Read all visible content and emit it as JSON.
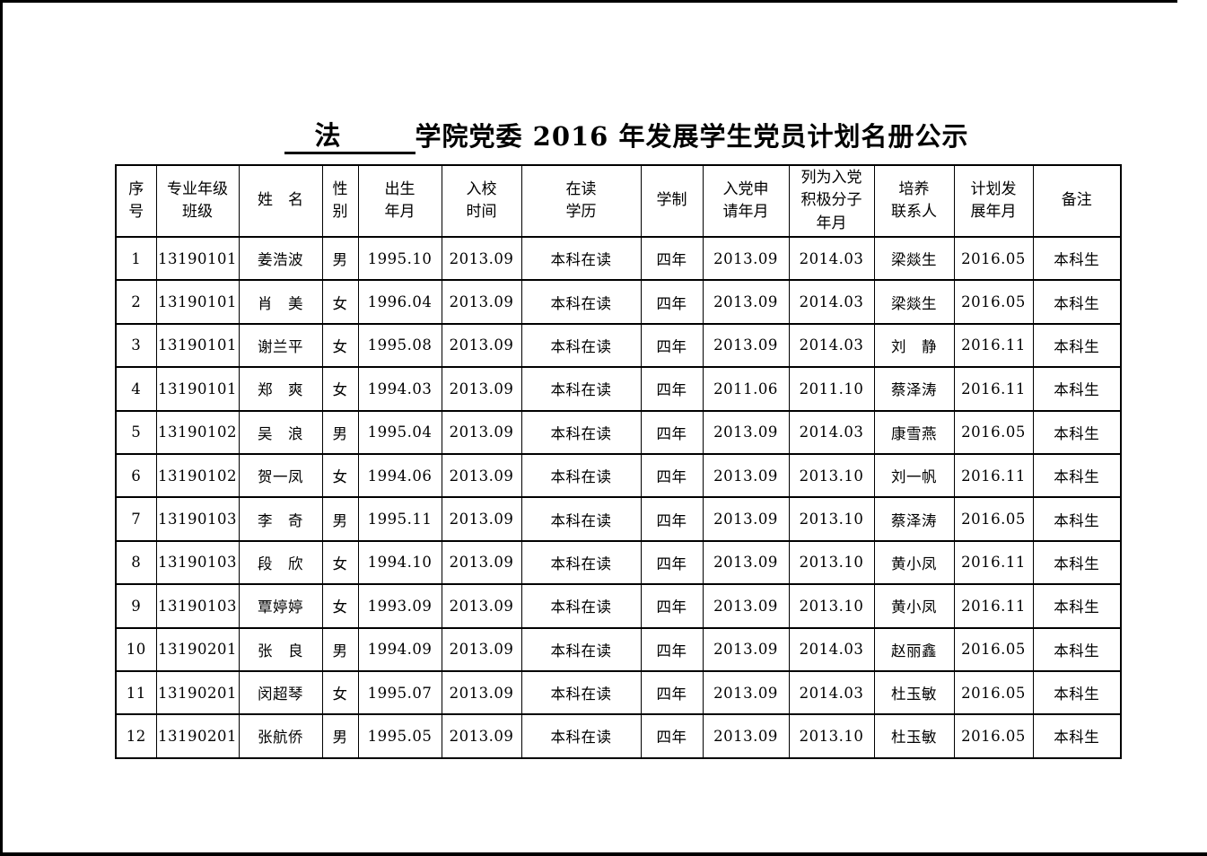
{
  "title": {
    "blank": "法",
    "rest": "学院党委 2016 年发展学生党员计划名册公示"
  },
  "table": {
    "headers": [
      [
        "序",
        "号"
      ],
      [
        "专业年级",
        "班级"
      ],
      [
        "姓　名"
      ],
      [
        "性",
        "别"
      ],
      [
        "出生",
        "年月"
      ],
      [
        "入校",
        "时间"
      ],
      [
        "在读",
        "学历"
      ],
      [
        "学制"
      ],
      [
        "入党申",
        "请年月"
      ],
      [
        "列为入党",
        "积极分子",
        "年月"
      ],
      [
        "培养",
        "联系人"
      ],
      [
        "计划发",
        "展年月"
      ],
      [
        "备注"
      ]
    ],
    "rows": [
      [
        "1",
        "13190101",
        "姜浩波",
        "男",
        "1995.10",
        "2013.09",
        "本科在读",
        "四年",
        "2013.09",
        "2014.03",
        "梁燚生",
        "2016.05",
        "本科生"
      ],
      [
        "2",
        "13190101",
        "肖　美",
        "女",
        "1996.04",
        "2013.09",
        "本科在读",
        "四年",
        "2013.09",
        "2014.03",
        "梁燚生",
        "2016.05",
        "本科生"
      ],
      [
        "3",
        "13190101",
        "谢兰平",
        "女",
        "1995.08",
        "2013.09",
        "本科在读",
        "四年",
        "2013.09",
        "2014.03",
        "刘　静",
        "2016.11",
        "本科生"
      ],
      [
        "4",
        "13190101",
        "郑　爽",
        "女",
        "1994.03",
        "2013.09",
        "本科在读",
        "四年",
        "2011.06",
        "2011.10",
        "蔡泽涛",
        "2016.11",
        "本科生"
      ],
      [
        "5",
        "13190102",
        "吴　浪",
        "男",
        "1995.04",
        "2013.09",
        "本科在读",
        "四年",
        "2013.09",
        "2014.03",
        "康雪燕",
        "2016.05",
        "本科生"
      ],
      [
        "6",
        "13190102",
        "贺一凤",
        "女",
        "1994.06",
        "2013.09",
        "本科在读",
        "四年",
        "2013.09",
        "2013.10",
        "刘一帆",
        "2016.11",
        "本科生"
      ],
      [
        "7",
        "13190103",
        "李　奇",
        "男",
        "1995.11",
        "2013.09",
        "本科在读",
        "四年",
        "2013.09",
        "2013.10",
        "蔡泽涛",
        "2016.05",
        "本科生"
      ],
      [
        "8",
        "13190103",
        "段　欣",
        "女",
        "1994.10",
        "2013.09",
        "本科在读",
        "四年",
        "2013.09",
        "2013.10",
        "黄小凤",
        "2016.11",
        "本科生"
      ],
      [
        "9",
        "13190103",
        "覃婷婷",
        "女",
        "1993.09",
        "2013.09",
        "本科在读",
        "四年",
        "2013.09",
        "2013.10",
        "黄小凤",
        "2016.11",
        "本科生"
      ],
      [
        "10",
        "13190201",
        "张　良",
        "男",
        "1994.09",
        "2013.09",
        "本科在读",
        "四年",
        "2013.09",
        "2014.03",
        "赵丽鑫",
        "2016.05",
        "本科生"
      ],
      [
        "11",
        "13190201",
        "闵超琴",
        "女",
        "1995.07",
        "2013.09",
        "本科在读",
        "四年",
        "2013.09",
        "2014.03",
        "杜玉敏",
        "2016.05",
        "本科生"
      ],
      [
        "12",
        "13190201",
        "张航侨",
        "男",
        "1995.05",
        "2013.09",
        "本科在读",
        "四年",
        "2013.09",
        "2013.10",
        "杜玉敏",
        "2016.05",
        "本科生"
      ]
    ]
  }
}
